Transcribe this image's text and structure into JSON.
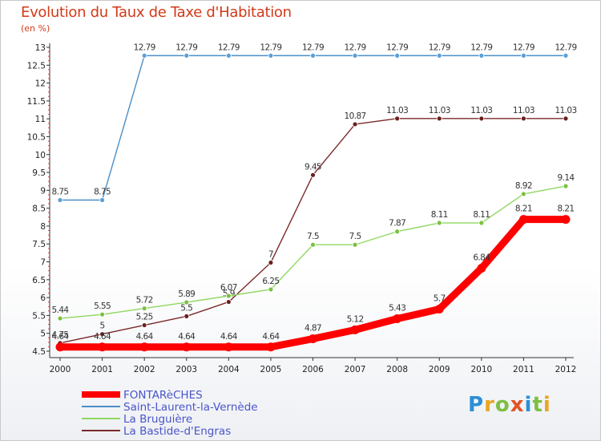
{
  "title": "Evolution du Taux de Taxe d'Habitation",
  "unit": "(en %)",
  "logo": {
    "text": "Proxiti",
    "colors": [
      "#2b8fd6",
      "#e8a623",
      "#7cc043",
      "#e25423",
      "#2b8fd6",
      "#7cc043",
      "#e8a623"
    ]
  },
  "chart_data": {
    "type": "line",
    "x": [
      2000,
      2001,
      2002,
      2003,
      2004,
      2005,
      2006,
      2007,
      2008,
      2009,
      2010,
      2011,
      2012
    ],
    "ylim": [
      4.5,
      13
    ],
    "yticks": [
      "4.5",
      "5",
      "5.5",
      "6",
      "6.5",
      "7",
      "7.5",
      "8",
      "8.5",
      "9",
      "9.5",
      "10",
      "10.5",
      "11",
      "11.5",
      "12",
      "12.5",
      "13"
    ],
    "grid": false,
    "legend_position": "bottom-left",
    "series": [
      {
        "name": "Saint-Laurent-la-Vernède",
        "color": "#4a8fc8",
        "marker": "#5aa0d8",
        "values": [
          8.75,
          8.75,
          12.79,
          12.79,
          12.79,
          12.79,
          12.79,
          12.79,
          12.79,
          12.79,
          12.79,
          12.79,
          12.79
        ],
        "labels": [
          "8.75",
          "8.75",
          "12.79",
          "12.79",
          "12.79",
          "12.79",
          "12.79",
          "12.79",
          "12.79",
          "12.79",
          "12.79",
          "12.79",
          "12.79"
        ]
      },
      {
        "name": "La Bastide-d'Engras",
        "color": "#7b2a2a",
        "marker": "#6b1f1f",
        "values": [
          4.75,
          5,
          5.25,
          5.5,
          5.9,
          7,
          9.45,
          10.87,
          11.03,
          11.03,
          11.03,
          11.03,
          11.03
        ],
        "labels": [
          "4.75",
          "5",
          "5.25",
          "5.5",
          "5.9",
          "7",
          "9.45",
          "10.87",
          "11.03",
          "11.03",
          "11.03",
          "11.03",
          "11.03"
        ]
      },
      {
        "name": "La Bruguière",
        "color": "#8fd860",
        "marker": "#7cc043",
        "values": [
          5.44,
          5.55,
          5.72,
          5.89,
          6.07,
          6.25,
          7.5,
          7.5,
          7.87,
          8.11,
          8.11,
          8.92,
          9.14
        ],
        "labels": [
          "5.44",
          "5.55",
          "5.72",
          "5.89",
          "6.07",
          "6.25",
          "7.5",
          "7.5",
          "7.87",
          "8.11",
          "8.11",
          "8.92",
          "9.14"
        ]
      },
      {
        "name": "FONTARèCHES",
        "color": "#ff0000",
        "marker": "#ff0000",
        "thick": true,
        "values": [
          4.64,
          4.64,
          4.64,
          4.64,
          4.64,
          4.64,
          4.87,
          5.12,
          5.43,
          5.7,
          6.84,
          8.21,
          8.21
        ],
        "labels": [
          "4.64",
          "4.64",
          "4.64",
          "4.64",
          "4.64",
          "4.64",
          "4.87",
          "5.12",
          "5.43",
          "5.7",
          "6.84",
          "8.21",
          "8.21"
        ]
      }
    ],
    "legend": [
      {
        "name": "FONTARèCHES",
        "color": "#ff0000",
        "thick": true
      },
      {
        "name": "Saint-Laurent-la-Vernède",
        "color": "#4a8fc8",
        "thick": false
      },
      {
        "name": "La Bruguière",
        "color": "#8fd860",
        "thick": false
      },
      {
        "name": "La Bastide-d'Engras",
        "color": "#7b2a2a",
        "thick": false
      }
    ]
  }
}
